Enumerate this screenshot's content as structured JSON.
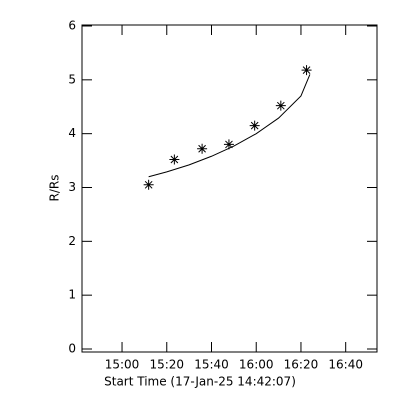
{
  "chart_data": {
    "type": "scatter",
    "xlabel": "Start Time (17-Jan-25 14:42:07)",
    "ylabel": "R/Rs",
    "series": [
      {
        "marker": "asterisk",
        "color": "#000000",
        "x": [
          911.9,
          923.4,
          935.8,
          947.8,
          959.3,
          971.0,
          982.5
        ],
        "values": [
          3.05,
          3.52,
          3.72,
          3.8,
          4.15,
          4.52,
          5.18
        ]
      },
      {
        "marker": "line",
        "color": "#000000",
        "x": [
          911.9,
          920,
          930,
          940,
          950,
          960,
          970,
          980,
          984
        ],
        "values": [
          3.2,
          3.29,
          3.42,
          3.58,
          3.77,
          4.0,
          4.29,
          4.7,
          5.1
        ]
      }
    ],
    "xlim": [
      882.1,
      1014
    ],
    "xticks": [
      {
        "value": 900,
        "label": "15:00"
      },
      {
        "value": 920,
        "label": "15:20"
      },
      {
        "value": 940,
        "label": "15:40"
      },
      {
        "value": 960,
        "label": "16:00"
      },
      {
        "value": 980,
        "label": "16:20"
      },
      {
        "value": 1000,
        "label": "16:40"
      }
    ],
    "ylim": [
      0,
      6
    ],
    "yticks": [
      0,
      1,
      2,
      3,
      4,
      5,
      6
    ]
  }
}
